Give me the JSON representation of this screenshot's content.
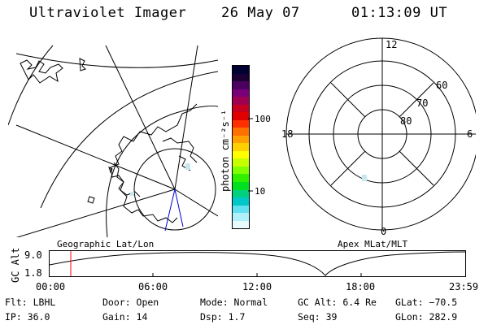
{
  "header": {
    "title": "Ultraviolet Imager",
    "date": "26 May 07",
    "time": "01:13:09 UT"
  },
  "geo_panel": {
    "label": "Geographic Lat/Lon"
  },
  "color_bar": {
    "unit_label": "photon cm⁻²s⁻¹",
    "ticks": [
      "100",
      "10"
    ],
    "colors": [
      "#000033",
      "#1a0033",
      "#4b0060",
      "#7a0078",
      "#a00050",
      "#c80020",
      "#e00000",
      "#ff3000",
      "#ff7000",
      "#ffa000",
      "#ffd000",
      "#ffff00",
      "#c8ff00",
      "#80ff00",
      "#30f000",
      "#00e020",
      "#00d080",
      "#00c8c8",
      "#60e0f0",
      "#b0f0f8",
      "#e8fcfc"
    ]
  },
  "polar_panel": {
    "label": "Apex MLat/MLT",
    "mlt_labels": {
      "top": "12",
      "left": "18",
      "right": "6",
      "bottom": "0"
    },
    "lat_labels": [
      "60",
      "70",
      "80"
    ]
  },
  "altitude_plot": {
    "ylabel": "GC Alt",
    "yticks": [
      "9.0",
      "1.8"
    ],
    "xticks": [
      "00:00",
      "06:00",
      "12:00",
      "18:00",
      "23:59"
    ],
    "current_time_color": "#ff0000"
  },
  "status": {
    "flt": "Flt: LBHL",
    "ip": "IP: 36.0",
    "door": "Door: Open",
    "gain": "Gain: 14",
    "mode": "Mode: Normal",
    "dsp": "Dsp:    1.7",
    "gc_alt": "GC Alt: 6.4 Re",
    "seq": "Seq: 39",
    "glat": "GLat: −70.5",
    "glon": "GLon: 282.9"
  }
}
